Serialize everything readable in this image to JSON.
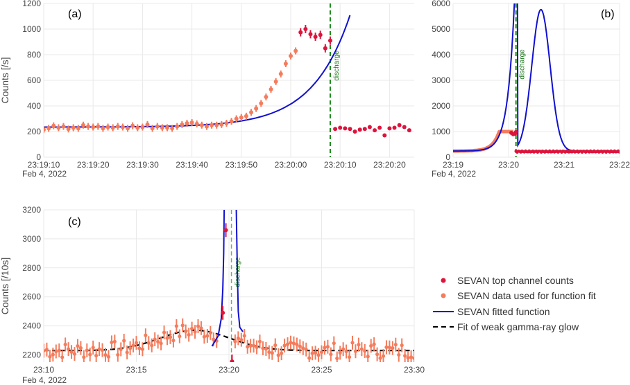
{
  "chart_data": [
    {
      "id": "a",
      "type": "scatter",
      "panel_label": "(a)",
      "ylabel": "Counts [/s]",
      "date_label": "Feb 4, 2022",
      "xticks": [
        "23:19:10",
        "23:19:20",
        "23:19:30",
        "23:19:40",
        "23:19:50",
        "23:20:00",
        "23:20:10",
        "23:20:20"
      ],
      "yticks": [
        "0",
        "200",
        "400",
        "600",
        "800",
        "1000",
        "1200"
      ],
      "xlim_seconds_after_23_19_10": [
        0,
        75
      ],
      "ylim": [
        0,
        1200
      ],
      "grid": true,
      "discharge_label": "discharge",
      "discharge_time": "23:20:08",
      "fit_data": {
        "t": [
          "23:19:10",
          "23:19:11",
          "23:19:12",
          "23:19:13",
          "23:19:14",
          "23:19:15",
          "23:19:16",
          "23:19:17",
          "23:19:18",
          "23:19:19",
          "23:19:20",
          "23:19:21",
          "23:19:22",
          "23:19:23",
          "23:19:24",
          "23:19:25",
          "23:19:26",
          "23:19:27",
          "23:19:28",
          "23:19:29",
          "23:19:30",
          "23:19:31",
          "23:19:32",
          "23:19:33",
          "23:19:34",
          "23:19:35",
          "23:19:36",
          "23:19:37",
          "23:19:38",
          "23:19:39",
          "23:19:40",
          "23:19:41",
          "23:19:42",
          "23:19:43",
          "23:19:44",
          "23:19:45",
          "23:19:46",
          "23:19:47",
          "23:19:48",
          "23:19:49",
          "23:19:50",
          "23:19:51",
          "23:19:52",
          "23:19:53",
          "23:19:54",
          "23:19:55",
          "23:19:56",
          "23:19:57",
          "23:19:58",
          "23:19:59",
          "23:20:00",
          "23:20:01"
        ],
        "counts": [
          215,
          225,
          245,
          230,
          240,
          220,
          230,
          225,
          250,
          240,
          235,
          240,
          225,
          235,
          230,
          240,
          235,
          225,
          245,
          230,
          235,
          255,
          225,
          240,
          230,
          230,
          225,
          240,
          255,
          265,
          270,
          260,
          250,
          240,
          250,
          250,
          255,
          265,
          280,
          300,
          310,
          320,
          350,
          380,
          420,
          470,
          530,
          590,
          650,
          730,
          790,
          830
        ]
      },
      "top_data": {
        "t": [
          "23:20:02",
          "23:20:03",
          "23:20:04",
          "23:20:05",
          "23:20:06",
          "23:20:07",
          "23:20:08",
          "23:20:09",
          "23:20:10",
          "23:20:11",
          "23:20:12",
          "23:20:13",
          "23:20:14",
          "23:20:15",
          "23:20:16",
          "23:20:17",
          "23:20:18",
          "23:20:19",
          "23:20:20",
          "23:20:21",
          "23:20:22",
          "23:20:23",
          "23:20:24"
        ],
        "counts": [
          975,
          1000,
          960,
          940,
          955,
          850,
          910,
          220,
          230,
          225,
          220,
          200,
          215,
          220,
          235,
          210,
          230,
          170,
          225,
          230,
          250,
          235,
          210
        ]
      },
      "fitted_function": "exponential rise"
    },
    {
      "id": "b",
      "type": "scatter",
      "panel_label": "(b)",
      "date_label": "Feb 4, 2022",
      "xticks": [
        "23:19",
        "23:20",
        "23:21",
        "23:22"
      ],
      "yticks": [
        "0",
        "1000",
        "2000",
        "3000",
        "4000",
        "5000",
        "6000"
      ],
      "xlim_minutes": [
        "23:19",
        "23:22"
      ],
      "ylim": [
        0,
        6000
      ],
      "grid": true,
      "discharge_label": "discharge",
      "discharge_time": "23:20:08",
      "peak": {
        "time": "23:20:35",
        "counts": 5750
      }
    },
    {
      "id": "c",
      "type": "scatter",
      "panel_label": "(c)",
      "ylabel": "Counts [/10s]",
      "date_label": "Feb 4, 2022",
      "xticks": [
        "23:10",
        "23:15",
        "23:20",
        "23:25",
        "23:30"
      ],
      "yticks": [
        "2200",
        "2400",
        "2600",
        "2800",
        "3000",
        "3200"
      ],
      "xlim_minutes": [
        "23:10",
        "23:30"
      ],
      "ylim": [
        2150,
        3200
      ],
      "grid": true,
      "discharge_label": "discharge",
      "discharge_time": "23:20:08",
      "top_points": [
        {
          "t": "23:19:40",
          "counts": 2490
        },
        {
          "t": "23:19:50",
          "counts": 3060
        },
        {
          "t": "23:20:10",
          "counts": 2155
        }
      ],
      "glow_fit_peak": {
        "t": "23:18:10",
        "counts": 2370
      },
      "glow_fit_baseline": 2230
    }
  ],
  "legend": {
    "placement": "right",
    "items": [
      {
        "label": "SEVAN top channel counts",
        "color": "#dc143c",
        "kind": "dot"
      },
      {
        "label": "SEVAN data used for function fit",
        "color": "#f47c5c",
        "kind": "dot"
      },
      {
        "label": "SEVAN fitted function",
        "color": "#1010d0",
        "kind": "line"
      },
      {
        "label": "Fit of weak gamma-ray glow",
        "color": "#000000",
        "kind": "dash"
      }
    ]
  },
  "colors": {
    "top": "#dc143c",
    "fit_data": "#f47c5c",
    "fit": "#1010d0",
    "glow": "#000000",
    "discharge": "#1a8a1a",
    "grid": "#e9e9e9"
  }
}
